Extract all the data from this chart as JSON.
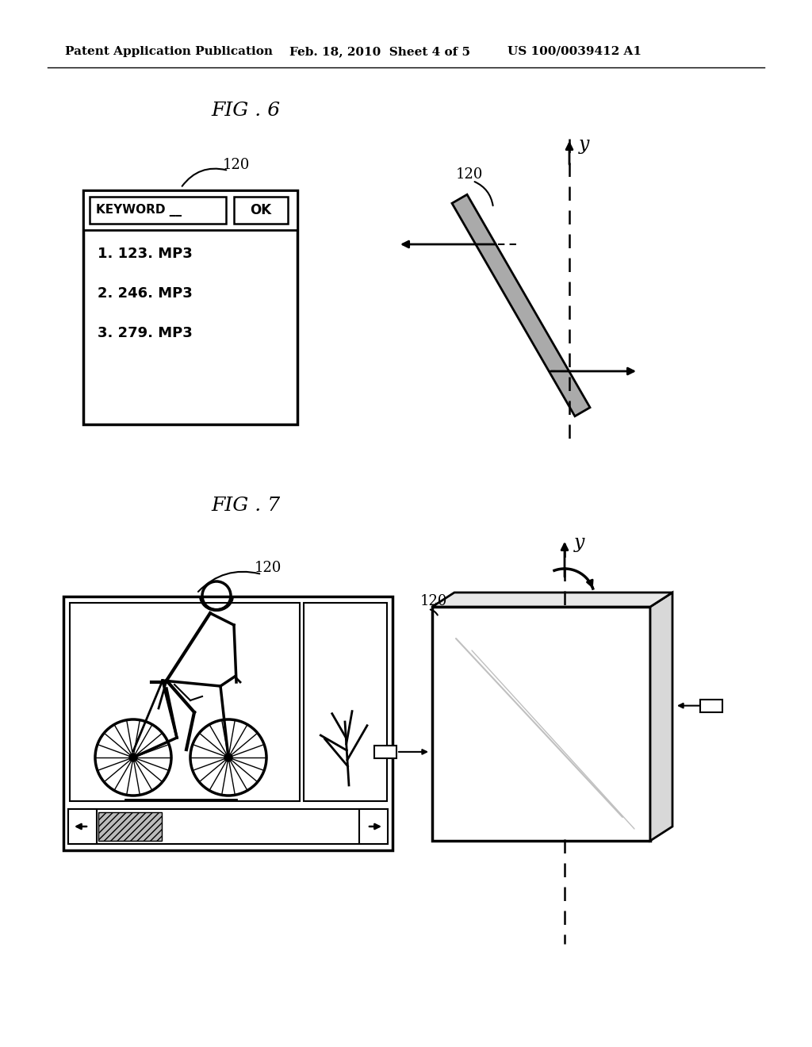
{
  "title_header": "Patent Application Publication",
  "title_date": "Feb. 18, 2010  Sheet 4 of 5",
  "title_patent": "US 100/0039412 A1",
  "fig6_label": "FIG . 6",
  "fig7_label": "FIG . 7",
  "label_120": "120",
  "keyword_text": "KEYWORD __",
  "ok_text": "OK",
  "list_items": [
    "1. 123. MP3",
    "2. 246. MP3",
    "3. 279. MP3"
  ],
  "y_axis_label": "y",
  "bg_color": "#ffffff",
  "line_color": "#000000",
  "gray_color": "#aaaaaa",
  "light_gray": "#cccccc"
}
